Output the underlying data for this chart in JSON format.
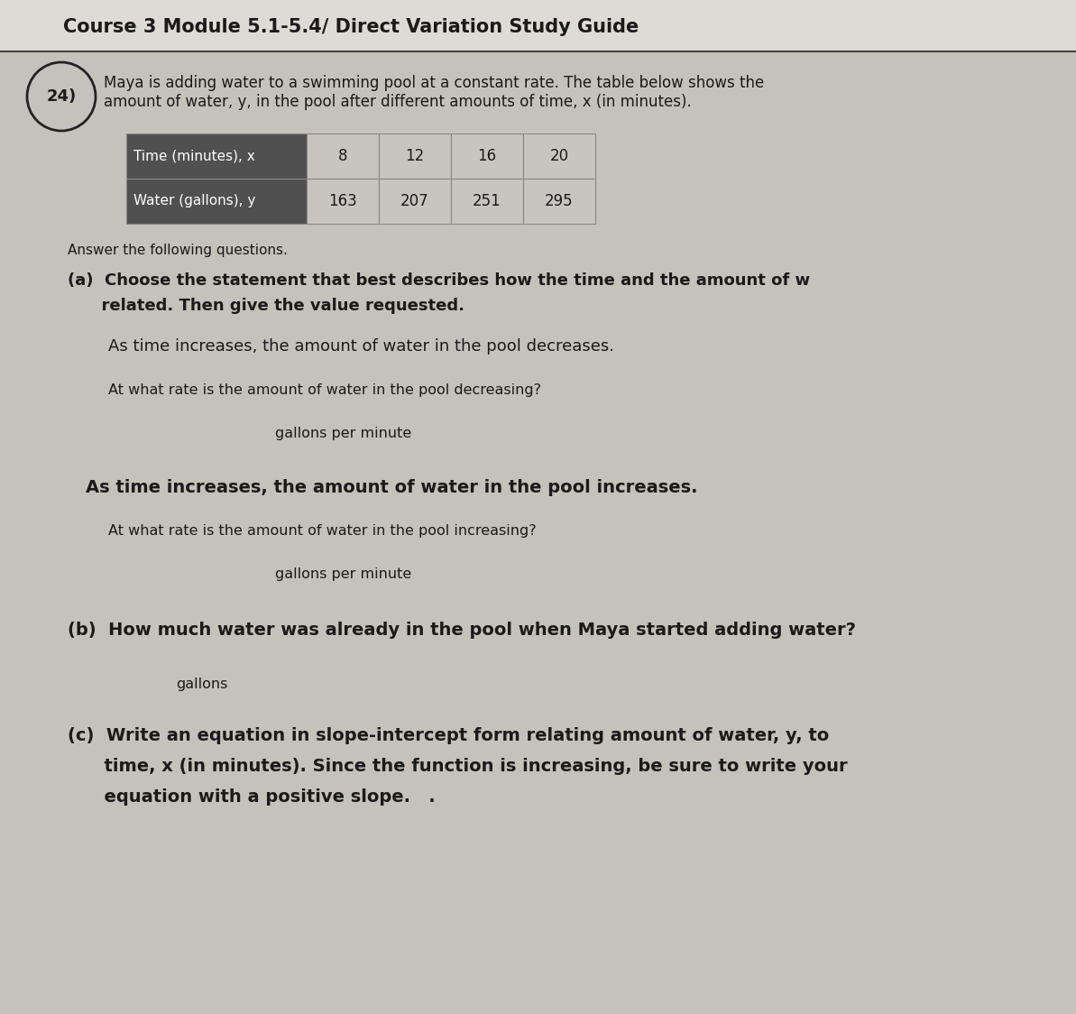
{
  "bg_color": "#c5c2bc",
  "title_bg": "#dedad5",
  "title": "Course 3 Module 5.1-5.4/ Direct Variation Study Guide",
  "q_number": "24)",
  "intro_line1": "Maya is adding water to a swimming pool at a constant rate. The table below shows the",
  "intro_line2": "amount of water, y, in the pool after different amounts of time, x (in minutes).",
  "table_header_bg": "#505050",
  "table_header_text_color": "#ffffff",
  "table_body_bg": "#c8c5c0",
  "table_row1_label": "Time (minutes), x",
  "table_row2_label": "Water (gallons), y",
  "table_x_values": [
    "8",
    "12",
    "16",
    "20"
  ],
  "table_y_values": [
    "163",
    "207",
    "251",
    "295"
  ],
  "answer_q_text": "Answer the following questions.",
  "part_a_line1": "(a)  Choose the statement that best describes how the time and the amount of w",
  "part_a_line2": "      related. Then give the value requested.",
  "stmt1": "As time increases, the amount of water in the pool decreases.",
  "stmt1_sub": "At what rate is the amount of water in the pool decreasing?",
  "stmt1_answer": "gallons per minute",
  "stmt2": "As time increases, the amount of water in the pool increases.",
  "stmt2_sub": "At what rate is the amount of water in the pool increasing?",
  "stmt2_answer": "gallons per minute",
  "part_b_text": "(b)  How much water was already in the pool when Maya started adding water?",
  "part_b_answer": "gallons",
  "part_c_line1": "(c)  Write an equation in slope-intercept form relating amount of water, y, to",
  "part_c_line2": "      time, x (in minutes). Since the function is increasing, be sure to write your",
  "part_c_line3": "      equation with a positive slope.   ."
}
